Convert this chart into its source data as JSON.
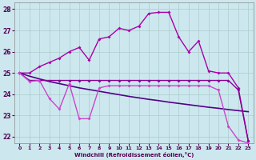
{
  "xlabel": "Windchill (Refroidissement éolien,°C)",
  "background_color": "#cce8ee",
  "grid_color": "#aacccc",
  "xlim": [
    -0.5,
    23.5
  ],
  "ylim": [
    21.7,
    28.3
  ],
  "yticks": [
    22,
    23,
    24,
    25,
    26,
    27,
    28
  ],
  "xticks": [
    0,
    1,
    2,
    3,
    4,
    5,
    6,
    7,
    8,
    9,
    10,
    11,
    12,
    13,
    14,
    15,
    16,
    17,
    18,
    19,
    20,
    21,
    22,
    23
  ],
  "series": [
    {
      "x": [
        0,
        1,
        2,
        3,
        4,
        5,
        6,
        7,
        8,
        9,
        10,
        11,
        12,
        13,
        14,
        15,
        16,
        17,
        18,
        19,
        20,
        21,
        22,
        23
      ],
      "y": [
        25.0,
        25.0,
        25.3,
        25.5,
        25.7,
        26.0,
        26.2,
        25.6,
        26.6,
        26.7,
        27.1,
        27.0,
        27.2,
        27.8,
        27.85,
        27.85,
        26.7,
        26.0,
        26.5,
        25.1,
        25.0,
        25.0,
        24.3,
        21.8
      ],
      "color": "#aa00aa",
      "lw": 1.0,
      "marker": "D",
      "ms": 2.0
    },
    {
      "x": [
        0,
        1,
        2,
        3,
        4,
        5,
        6,
        7,
        8,
        9,
        10,
        11,
        12,
        13,
        14,
        15,
        16,
        17,
        18,
        19,
        20,
        21,
        22,
        23
      ],
      "y": [
        25.0,
        24.85,
        24.72,
        24.6,
        24.5,
        24.4,
        24.3,
        24.22,
        24.14,
        24.06,
        23.98,
        23.9,
        23.83,
        23.76,
        23.7,
        23.63,
        23.57,
        23.51,
        23.45,
        23.39,
        23.34,
        23.28,
        23.23,
        23.18
      ],
      "color": "#550088",
      "lw": 1.2,
      "marker": null,
      "ms": 0
    },
    {
      "x": [
        0,
        1,
        2,
        3,
        4,
        5,
        6,
        7,
        8,
        9,
        10,
        11,
        12,
        13,
        14,
        15,
        16,
        17,
        18,
        19,
        20,
        21,
        22,
        23
      ],
      "y": [
        25.0,
        24.65,
        24.65,
        24.65,
        24.65,
        24.65,
        24.65,
        24.65,
        24.65,
        24.65,
        24.65,
        24.65,
        24.65,
        24.65,
        24.65,
        24.65,
        24.65,
        24.65,
        24.65,
        24.65,
        24.65,
        24.65,
        24.2,
        21.8
      ],
      "color": "#880099",
      "lw": 1.0,
      "marker": "D",
      "ms": 2.0
    },
    {
      "x": [
        0,
        1,
        2,
        3,
        4,
        5,
        6,
        7,
        8,
        9,
        10,
        11,
        12,
        13,
        14,
        15,
        16,
        17,
        18,
        19,
        20,
        21,
        22,
        23
      ],
      "y": [
        25.0,
        24.6,
        24.65,
        23.8,
        23.3,
        24.5,
        22.85,
        22.85,
        24.3,
        24.4,
        24.4,
        24.4,
        24.4,
        24.4,
        24.4,
        24.4,
        24.4,
        24.4,
        24.4,
        24.4,
        24.2,
        22.5,
        21.85,
        21.7
      ],
      "color": "#cc44cc",
      "lw": 1.0,
      "marker": "D",
      "ms": 2.0
    }
  ]
}
